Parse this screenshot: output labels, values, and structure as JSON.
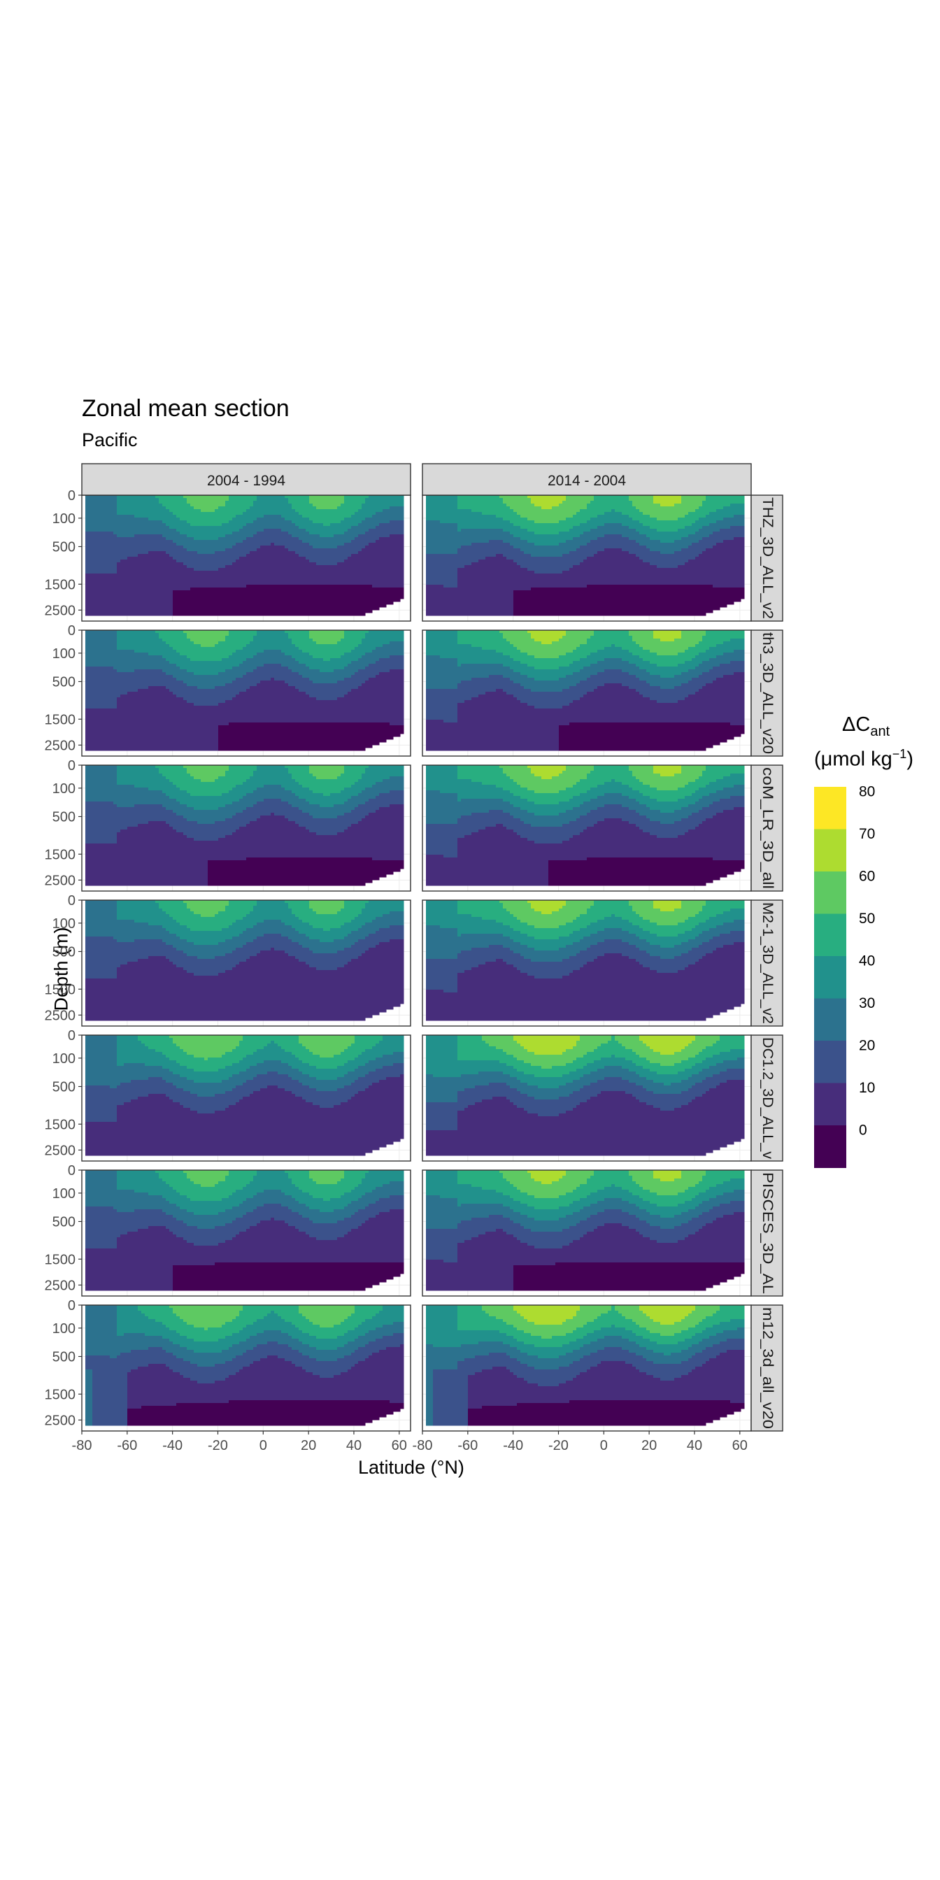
{
  "title": "Zonal mean section",
  "subtitle": "Pacific",
  "xlabel": "Latitude (°N)",
  "ylabel": "Depth (m)",
  "legend": {
    "title_main": "ΔC",
    "title_sub": "ant",
    "units_open": "(μmol kg",
    "units_sup": "−1",
    "units_close": ")",
    "labels": [
      "0",
      "10",
      "20",
      "30",
      "40",
      "50",
      "60",
      "70",
      "80"
    ],
    "colors": [
      "#440154",
      "#472d7b",
      "#3b528b",
      "#2c728e",
      "#21918c",
      "#28ae80",
      "#5ec962",
      "#addc30",
      "#fde725"
    ]
  },
  "chart_data": {
    "type": "heatmap",
    "facet_columns": [
      "2004 - 1994",
      "2014 - 2004"
    ],
    "facet_rows": [
      "THZ_3D_ALL_v2",
      "th3_3D_ALL_v20",
      "coM_LR_3D_all",
      "M2-1_3D_ALL_v2",
      "DC1.2_3D_ALL_v",
      "PISCES_3D_AL",
      "m12_3d_all_v20"
    ],
    "x_ticks": [
      -80,
      -60,
      -40,
      -20,
      0,
      20,
      40,
      60
    ],
    "x_tick_labels": [
      "-80",
      "-60",
      "-40",
      "-20",
      "0",
      "20",
      "40",
      "60"
    ],
    "xlim": [
      -80,
      65
    ],
    "y_ticks": [
      0,
      100,
      500,
      1500,
      2500
    ],
    "y_tick_labels": [
      "0",
      "100",
      "500",
      "1500",
      "2500"
    ],
    "ylim": [
      3000,
      0
    ],
    "y_scale": "sqrt",
    "z_breaks": [
      -10,
      0,
      10,
      20,
      30,
      40,
      50,
      60,
      70,
      80,
      90
    ],
    "grid": true
  }
}
